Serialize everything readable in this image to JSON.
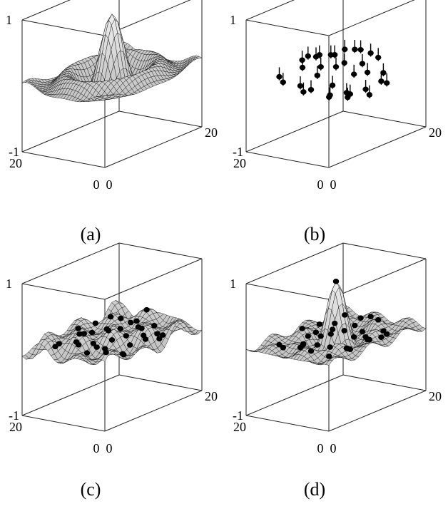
{
  "chart_data": [
    {
      "type": "surface",
      "panel": "(a)",
      "caption": "(a)",
      "title": "",
      "zlim": [
        -1,
        1
      ],
      "xlim": [
        0,
        20
      ],
      "ylim": [
        0,
        20
      ],
      "tick_labels": {
        "z_top": "1",
        "z_bottom": "-1",
        "y_far": "20",
        "x_far": "20",
        "y_origin": "0",
        "x_origin": "0"
      },
      "surface": "sinc-like surface with central peak at (10,10) of height about 0.9 and ripples",
      "points": []
    },
    {
      "type": "scatter",
      "panel": "(b)",
      "caption": "(b)",
      "title": "",
      "zlim": [
        -1,
        1
      ],
      "xlim": [
        0,
        20
      ],
      "ylim": [
        0,
        20
      ],
      "tick_labels": {
        "z_top": "1",
        "z_bottom": "-1",
        "y_far": "20",
        "x_far": "20",
        "y_origin": "0",
        "x_origin": "0"
      },
      "points": [
        {
          "x": 2.5,
          "y": 14.0,
          "z": 0.05
        },
        {
          "x": 3.0,
          "y": 15.5,
          "z": 0.1
        },
        {
          "x": 5.0,
          "y": 12.0,
          "z": -0.15
        },
        {
          "x": 6.5,
          "y": 14.0,
          "z": 0.15
        },
        {
          "x": 4.0,
          "y": 9.0,
          "z": -0.05
        },
        {
          "x": 7.0,
          "y": 11.0,
          "z": 0.05
        },
        {
          "x": 8.5,
          "y": 15.0,
          "z": 0.25
        },
        {
          "x": 9.0,
          "y": 12.5,
          "z": 0.1
        },
        {
          "x": 6.0,
          "y": 7.0,
          "z": -0.2
        },
        {
          "x": 8.0,
          "y": 8.5,
          "z": -0.1
        },
        {
          "x": 10.0,
          "y": 10.0,
          "z": 0.1
        },
        {
          "x": 11.5,
          "y": 13.0,
          "z": 0.2
        },
        {
          "x": 9.5,
          "y": 6.0,
          "z": -0.25
        },
        {
          "x": 12.0,
          "y": 8.0,
          "z": -0.05
        },
        {
          "x": 13.0,
          "y": 11.5,
          "z": 0.05
        },
        {
          "x": 14.0,
          "y": 15.0,
          "z": 0.1
        },
        {
          "x": 11.0,
          "y": 4.0,
          "z": -0.2
        },
        {
          "x": 13.5,
          "y": 6.5,
          "z": -0.05
        },
        {
          "x": 15.0,
          "y": 9.5,
          "z": 0.0
        },
        {
          "x": 16.0,
          "y": 12.5,
          "z": 0.15
        },
        {
          "x": 7.5,
          "y": 4.5,
          "z": -0.15
        },
        {
          "x": 10.5,
          "y": 2.5,
          "z": -0.25
        },
        {
          "x": 12.5,
          "y": 2.0,
          "z": -0.1
        },
        {
          "x": 15.5,
          "y": 5.0,
          "z": -0.1
        },
        {
          "x": 17.0,
          "y": 8.0,
          "z": 0.05
        },
        {
          "x": 18.0,
          "y": 11.0,
          "z": 0.05
        },
        {
          "x": 4.5,
          "y": 5.0,
          "z": -0.1
        },
        {
          "x": 3.5,
          "y": 11.0,
          "z": 0.0
        },
        {
          "x": 9.0,
          "y": 17.0,
          "z": 0.15
        },
        {
          "x": 16.5,
          "y": 15.5,
          "z": 0.1
        },
        {
          "x": 14.5,
          "y": 3.0,
          "z": -0.2
        },
        {
          "x": 18.5,
          "y": 14.0,
          "z": 0.05
        },
        {
          "x": 11.0,
          "y": 16.0,
          "z": 0.15
        },
        {
          "x": 6.0,
          "y": 2.5,
          "z": -0.15
        },
        {
          "x": 13.0,
          "y": 17.5,
          "z": 0.1
        }
      ]
    },
    {
      "type": "surface",
      "panel": "(c)",
      "caption": "(c)",
      "title": "",
      "zlim": [
        -1,
        1
      ],
      "xlim": [
        0,
        20
      ],
      "ylim": [
        0,
        20
      ],
      "tick_labels": {
        "z_top": "1",
        "z_bottom": "-1",
        "y_far": "20",
        "x_far": "20",
        "y_origin": "0",
        "x_origin": "0"
      },
      "surface": "reconstructed wavy surface without central peak, with data points overlaid",
      "points": "same as (b)"
    },
    {
      "type": "surface",
      "panel": "(d)",
      "caption": "(d)",
      "title": "",
      "zlim": [
        -1,
        1
      ],
      "xlim": [
        0,
        20
      ],
      "ylim": [
        0,
        20
      ],
      "tick_labels": {
        "z_top": "1",
        "z_bottom": "-1",
        "y_far": "20",
        "x_far": "20",
        "y_origin": "0",
        "x_origin": "0"
      },
      "surface": "reconstructed surface with central peak near (10,10), with data points overlaid",
      "points": "same as (b)"
    }
  ],
  "captions": {
    "a": "(a)",
    "b": "(b)",
    "c": "(c)",
    "d": "(d)"
  }
}
